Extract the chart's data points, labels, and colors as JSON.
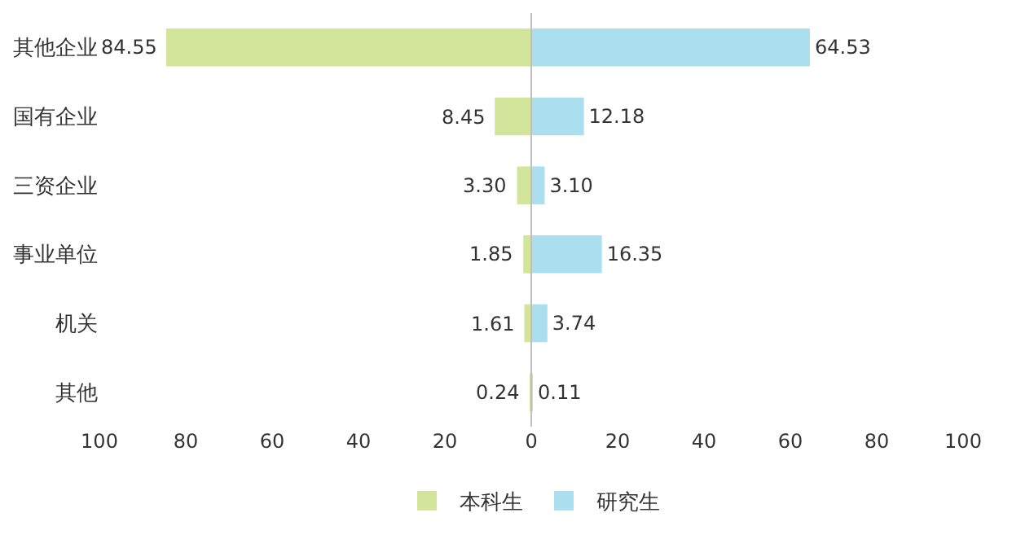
{
  "chart_data": {
    "type": "bar",
    "orientation": "horizontal",
    "categories": [
      "其他企业",
      "国有企业",
      "三资企业",
      "事业单位",
      "机关",
      "其他"
    ],
    "series": [
      {
        "name": "本科生",
        "color": "#d3e59b",
        "values": [
          84.55,
          8.45,
          3.3,
          1.85,
          1.61,
          0.24
        ],
        "base": [
          -84.55,
          -8.45,
          -3.3,
          -1.85,
          -1.61,
          -0.24
        ],
        "value_labels": [
          "84.55",
          "8.45",
          "3.30",
          "1.85",
          "1.61",
          "0.24"
        ]
      },
      {
        "name": "研究生",
        "color": "#abdff0",
        "values": [
          64.53,
          12.18,
          3.1,
          16.35,
          3.74,
          0.11
        ],
        "value_labels": [
          "64.53",
          "12.18",
          "3.10",
          "16.35",
          "3.74",
          "0.11"
        ]
      }
    ],
    "xlim": [
      -100,
      100
    ],
    "xticks": [
      {
        "value": -100,
        "label": "100"
      },
      {
        "value": -80,
        "label": "80"
      },
      {
        "value": -60,
        "label": "60"
      },
      {
        "value": -40,
        "label": "40"
      },
      {
        "value": -20,
        "label": "20"
      },
      0,
      20,
      40,
      60,
      80,
      100
    ],
    "ref_lines": [
      {
        "axis": "x",
        "value": 0,
        "color": "#bfbfbf"
      }
    ],
    "legend": "bottom"
  }
}
